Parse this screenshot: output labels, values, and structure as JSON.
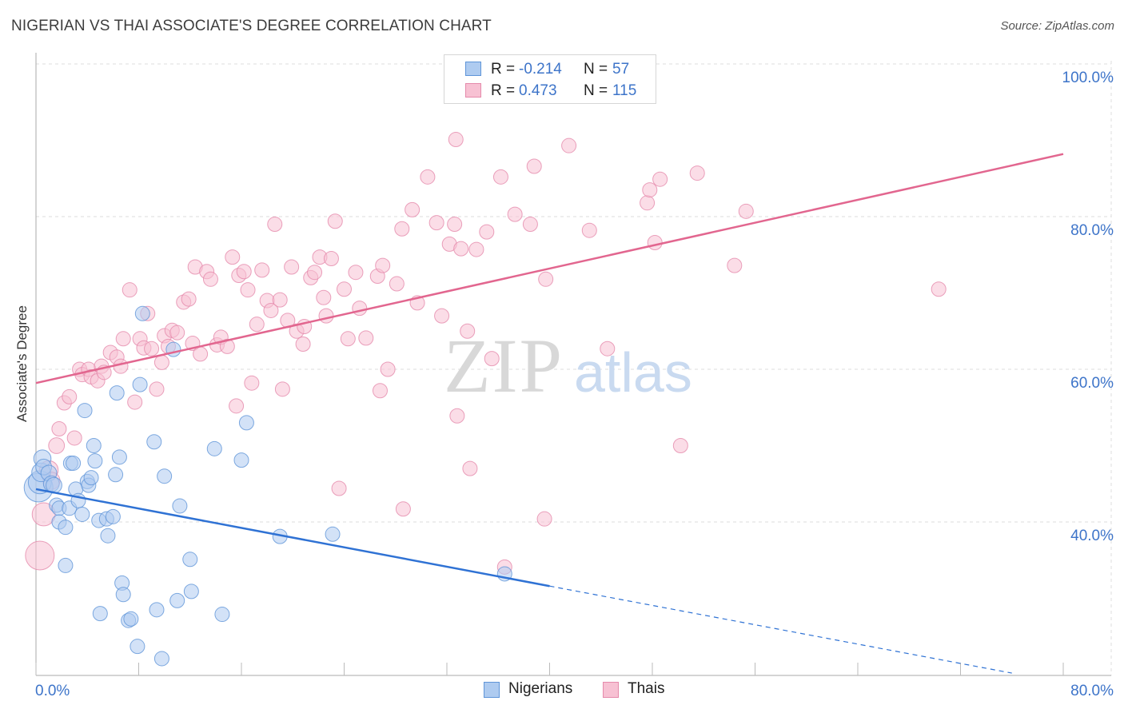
{
  "header": {
    "title": "NIGERIAN VS THAI ASSOCIATE'S DEGREE CORRELATION CHART",
    "source": "Source: ZipAtlas.com"
  },
  "stats": [
    {
      "r_label": "R =",
      "r_value": "-0.214",
      "n_label": "N =",
      "n_value": "57"
    },
    {
      "r_label": "R =",
      "r_value": "0.473",
      "n_label": "N =",
      "n_value": "115"
    }
  ],
  "legend": {
    "nigerians": "Nigerians",
    "thais": "Thais"
  },
  "colors": {
    "nigerian_fill": "#aecbf0",
    "nigerian_stroke": "#5f95d8",
    "nigerian_line": "#2f72d4",
    "thai_fill": "#f7c1d3",
    "thai_stroke": "#e58aab",
    "thai_line": "#e2668f",
    "tick_label": "#3d74c9",
    "grid": "#dddddd"
  },
  "chart_data": {
    "type": "scatter",
    "title": "NIGERIAN VS THAI ASSOCIATE'S DEGREE CORRELATION CHART",
    "xlabel": "",
    "ylabel": "Associate's Degree",
    "xlim": [
      0,
      80
    ],
    "ylim": [
      20,
      103
    ],
    "x_tick_labels": [
      {
        "v": 0,
        "t": "0.0%"
      },
      {
        "v": 80,
        "t": "80.0%"
      }
    ],
    "y_tick_labels": [
      {
        "v": 40,
        "t": "40.0%"
      },
      {
        "v": 60,
        "t": "60.0%"
      },
      {
        "v": 80,
        "t": "80.0%"
      },
      {
        "v": 100,
        "t": "100.0%"
      }
    ],
    "grid": true,
    "legend_position": "bottom-center",
    "series": [
      {
        "name": "Nigerians",
        "r": -0.214,
        "n": 57,
        "trend": {
          "x0": 0,
          "y0": 44.3,
          "x1": 40,
          "y1": 31.6,
          "dash_to_x": 76,
          "dash_to_y": 20.2
        },
        "points": [
          [
            0.2,
            44.5,
            2
          ],
          [
            0.3,
            45.2,
            1.6
          ],
          [
            0.4,
            46.5,
            1.3
          ],
          [
            0.5,
            48.3,
            1.2
          ],
          [
            0.6,
            47.2,
            1.1
          ],
          [
            1.0,
            46.4,
            1.1
          ],
          [
            1.2,
            45.0,
            1.1
          ],
          [
            1.4,
            44.8,
            1.1
          ],
          [
            1.6,
            42.2,
            1
          ],
          [
            1.8,
            41.8,
            1
          ],
          [
            1.8,
            40.0,
            1
          ],
          [
            2.3,
            39.3,
            1
          ],
          [
            2.3,
            34.3,
            1
          ],
          [
            2.6,
            41.8,
            1
          ],
          [
            2.7,
            47.7,
            1
          ],
          [
            2.9,
            47.7,
            1
          ],
          [
            3.1,
            44.3,
            1
          ],
          [
            3.3,
            42.8,
            1
          ],
          [
            3.6,
            41.0,
            1
          ],
          [
            3.8,
            54.6,
            1
          ],
          [
            4.0,
            45.3,
            1
          ],
          [
            4.1,
            44.8,
            1
          ],
          [
            4.3,
            45.8,
            1
          ],
          [
            4.5,
            50.0,
            1
          ],
          [
            4.6,
            48.0,
            1
          ],
          [
            4.9,
            40.2,
            1
          ],
          [
            5.0,
            28.0,
            1
          ],
          [
            5.5,
            40.4,
            1
          ],
          [
            5.6,
            38.2,
            1
          ],
          [
            6.0,
            40.7,
            1
          ],
          [
            6.2,
            46.2,
            1
          ],
          [
            6.3,
            56.9,
            1
          ],
          [
            6.5,
            48.5,
            1
          ],
          [
            6.7,
            32.0,
            1
          ],
          [
            6.8,
            30.5,
            1
          ],
          [
            7.2,
            27.1,
            1
          ],
          [
            7.4,
            27.3,
            1
          ],
          [
            7.9,
            23.7,
            1
          ],
          [
            8.1,
            58.0,
            1
          ],
          [
            8.3,
            67.3,
            1
          ],
          [
            9.2,
            50.5,
            1
          ],
          [
            9.4,
            28.5,
            1
          ],
          [
            9.8,
            22.1,
            1
          ],
          [
            10.0,
            46.0,
            1
          ],
          [
            10.7,
            62.6,
            1
          ],
          [
            11.0,
            29.7,
            1
          ],
          [
            11.2,
            42.1,
            1
          ],
          [
            12.0,
            35.1,
            1
          ],
          [
            12.1,
            30.9,
            1
          ],
          [
            13.9,
            49.6,
            1
          ],
          [
            14.5,
            27.9,
            1
          ],
          [
            16.0,
            48.1,
            1
          ],
          [
            16.4,
            53.0,
            1
          ],
          [
            19.0,
            38.1,
            1
          ],
          [
            23.1,
            38.4,
            1
          ],
          [
            36.5,
            33.2,
            1
          ]
        ]
      },
      {
        "name": "Thais",
        "r": 0.473,
        "n": 115,
        "trend": {
          "x0": 0,
          "y0": 58.2,
          "x1": 80,
          "y1": 88.2
        },
        "points": [
          [
            0.3,
            35.6,
            2
          ],
          [
            0.6,
            41.0,
            1.6
          ],
          [
            1.0,
            46.8,
            1.3
          ],
          [
            1.2,
            45.4,
            1.2
          ],
          [
            1.6,
            50.0,
            1.1
          ],
          [
            1.8,
            52.2,
            1
          ],
          [
            2.2,
            55.6,
            1
          ],
          [
            2.6,
            56.4,
            1
          ],
          [
            3.0,
            51.0,
            1
          ],
          [
            3.4,
            60.0,
            1
          ],
          [
            3.6,
            59.3,
            1
          ],
          [
            4.1,
            60.0,
            1
          ],
          [
            4.3,
            59.0,
            1
          ],
          [
            4.8,
            58.5,
            1
          ],
          [
            5.1,
            60.4,
            1
          ],
          [
            5.3,
            59.6,
            1
          ],
          [
            5.8,
            62.2,
            1
          ],
          [
            6.3,
            61.6,
            1
          ],
          [
            6.6,
            60.4,
            1
          ],
          [
            6.8,
            64.0,
            1
          ],
          [
            7.3,
            70.4,
            1
          ],
          [
            7.7,
            55.7,
            1
          ],
          [
            8.1,
            64.0,
            1
          ],
          [
            8.4,
            62.8,
            1
          ],
          [
            8.7,
            67.3,
            1
          ],
          [
            9.0,
            62.7,
            1
          ],
          [
            9.4,
            57.4,
            1
          ],
          [
            9.8,
            60.9,
            1
          ],
          [
            10.0,
            64.4,
            1
          ],
          [
            10.3,
            63.0,
            1
          ],
          [
            10.6,
            65.1,
            1
          ],
          [
            11.0,
            64.8,
            1
          ],
          [
            11.5,
            68.8,
            1
          ],
          [
            11.9,
            69.2,
            1
          ],
          [
            12.2,
            63.4,
            1
          ],
          [
            12.4,
            73.4,
            1
          ],
          [
            12.8,
            62.0,
            1
          ],
          [
            13.3,
            72.8,
            1
          ],
          [
            13.6,
            71.8,
            1
          ],
          [
            14.1,
            63.2,
            1
          ],
          [
            14.4,
            64.2,
            1
          ],
          [
            14.9,
            63.0,
            1
          ],
          [
            15.3,
            74.7,
            1
          ],
          [
            15.6,
            55.2,
            1
          ],
          [
            15.8,
            72.3,
            1
          ],
          [
            16.2,
            72.8,
            1
          ],
          [
            16.5,
            70.4,
            1
          ],
          [
            16.8,
            58.2,
            1
          ],
          [
            17.2,
            65.9,
            1
          ],
          [
            17.6,
            73.0,
            1
          ],
          [
            18.0,
            69.0,
            1
          ],
          [
            18.3,
            67.7,
            1
          ],
          [
            18.6,
            79.0,
            1
          ],
          [
            19.0,
            69.1,
            1
          ],
          [
            19.2,
            57.4,
            1
          ],
          [
            19.6,
            66.4,
            1
          ],
          [
            19.9,
            73.4,
            1
          ],
          [
            20.3,
            65.0,
            1
          ],
          [
            20.8,
            63.3,
            1
          ],
          [
            20.9,
            65.6,
            1
          ],
          [
            21.4,
            72.0,
            1
          ],
          [
            21.7,
            72.7,
            1
          ],
          [
            22.1,
            74.7,
            1
          ],
          [
            22.4,
            69.4,
            1
          ],
          [
            22.6,
            67.0,
            1
          ],
          [
            23.0,
            74.5,
            1
          ],
          [
            23.3,
            79.4,
            1
          ],
          [
            23.6,
            44.4,
            1
          ],
          [
            24.0,
            70.5,
            1
          ],
          [
            24.3,
            64.0,
            1
          ],
          [
            24.9,
            72.7,
            1
          ],
          [
            25.2,
            68.0,
            1
          ],
          [
            25.7,
            64.1,
            1
          ],
          [
            26.6,
            72.2,
            1
          ],
          [
            26.8,
            57.2,
            1
          ],
          [
            27.0,
            73.6,
            1
          ],
          [
            27.4,
            60.0,
            1
          ],
          [
            28.1,
            71.2,
            1
          ],
          [
            28.5,
            78.4,
            1
          ],
          [
            28.6,
            41.7,
            1
          ],
          [
            29.3,
            80.9,
            1
          ],
          [
            29.7,
            68.7,
            1
          ],
          [
            30.5,
            85.2,
            1
          ],
          [
            31.2,
            79.2,
            1
          ],
          [
            31.6,
            67.0,
            1
          ],
          [
            32.2,
            76.4,
            1
          ],
          [
            32.6,
            79.0,
            1
          ],
          [
            32.7,
            90.1,
            1
          ],
          [
            32.8,
            53.9,
            1
          ],
          [
            33.1,
            75.8,
            1
          ],
          [
            33.6,
            65.0,
            1
          ],
          [
            33.8,
            47.0,
            1
          ],
          [
            34.3,
            75.7,
            1
          ],
          [
            35.1,
            78.0,
            1
          ],
          [
            35.5,
            61.4,
            1
          ],
          [
            36.2,
            85.2,
            1
          ],
          [
            36.5,
            34.1,
            1
          ],
          [
            37.3,
            80.3,
            1
          ],
          [
            38.5,
            79.0,
            1
          ],
          [
            38.8,
            86.6,
            1
          ],
          [
            39.6,
            40.4,
            1
          ],
          [
            39.7,
            71.8,
            1
          ],
          [
            41.5,
            89.3,
            1
          ],
          [
            43.1,
            78.2,
            1
          ],
          [
            44.5,
            62.7,
            1
          ],
          [
            47.6,
            81.8,
            1
          ],
          [
            47.8,
            83.5,
            1
          ],
          [
            48.2,
            76.6,
            1
          ],
          [
            48.6,
            84.9,
            1
          ],
          [
            50.2,
            50.0,
            1
          ],
          [
            51.5,
            85.7,
            1
          ],
          [
            54.4,
            73.6,
            1
          ],
          [
            55.3,
            80.7,
            1
          ],
          [
            70.3,
            70.5,
            1
          ]
        ]
      }
    ]
  }
}
